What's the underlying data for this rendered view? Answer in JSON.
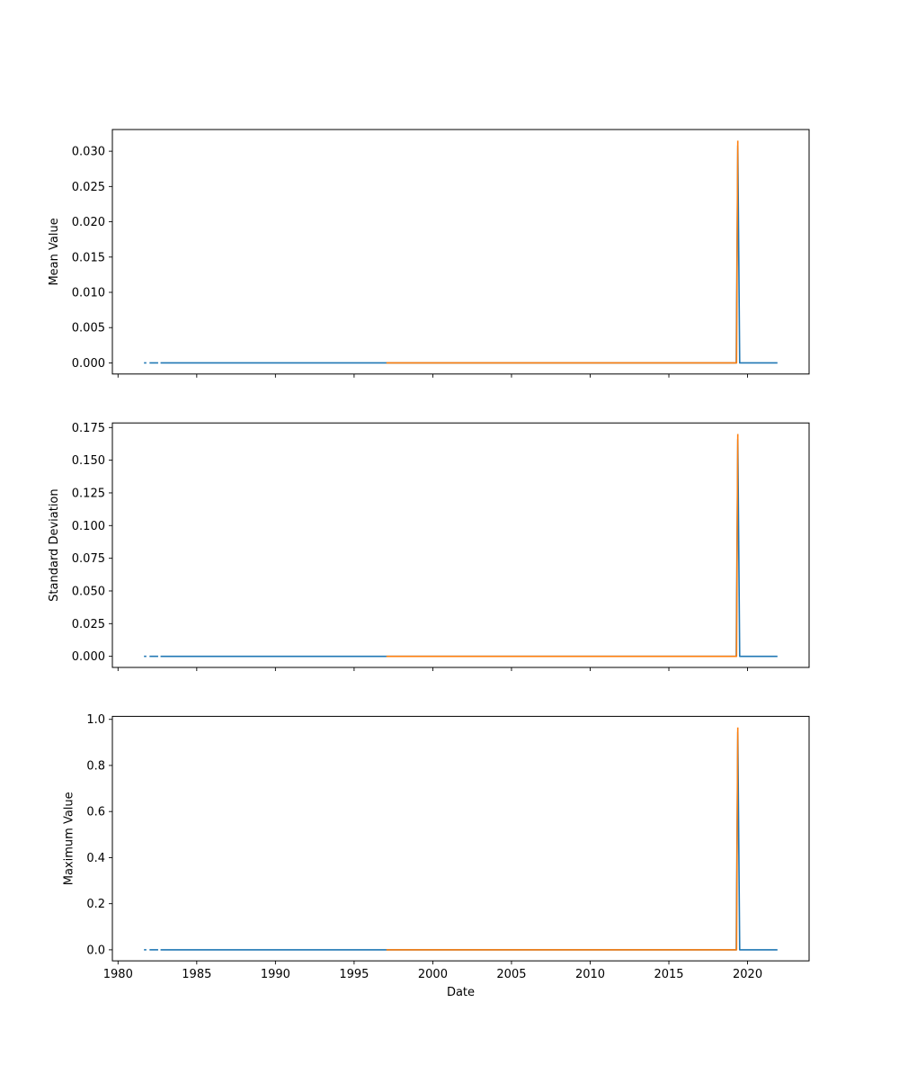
{
  "figure": {
    "background": "#ffffff",
    "text_color": "#000000",
    "spine_color": "#000000"
  },
  "chart_data": [
    {
      "type": "line",
      "name": "mean-value",
      "title": "",
      "xlabel": "",
      "ylabel": "Mean Value",
      "xlim": [
        1979.64,
        2023.91
      ],
      "ylim": [
        -0.001575,
        0.033075
      ],
      "grid": false,
      "legend": null,
      "xticks": {
        "values": [
          1980,
          1985,
          1990,
          1995,
          2000,
          2005,
          2010,
          2015,
          2020
        ],
        "labels": [
          "1980",
          "1985",
          "1990",
          "1995",
          "2000",
          "2005",
          "2010",
          "2015",
          "2020"
        ],
        "show_labels": false
      },
      "yticks": {
        "values": [
          0.0,
          0.005,
          0.01,
          0.015,
          0.02,
          0.025,
          0.03
        ],
        "labels": [
          "0.000",
          "0.005",
          "0.010",
          "0.015",
          "0.020",
          "0.025",
          "0.030"
        ]
      },
      "series": [
        {
          "name": "series-1",
          "color": "#1f77b4",
          "segments": [
            [
              [
                1981.65,
                0.0
              ],
              [
                1981.8,
                0.0
              ]
            ],
            [
              [
                1982.0,
                0.0
              ],
              [
                1982.55,
                0.0
              ]
            ],
            [
              [
                1982.7,
                0.0
              ],
              [
                2019.28,
                0.0
              ],
              [
                2019.38,
                0.0308
              ],
              [
                2019.5,
                0.0
              ],
              [
                2021.9,
                0.0
              ]
            ]
          ]
        },
        {
          "name": "series-2",
          "color": "#ff7f0e",
          "segments": [
            [
              [
                1997.05,
                0.0
              ],
              [
                2019.3,
                0.0
              ],
              [
                2019.38,
                0.0315
              ]
            ]
          ]
        }
      ]
    },
    {
      "type": "line",
      "name": "standard-deviation",
      "title": "",
      "xlabel": "",
      "ylabel": "Standard Deviation",
      "xlim": [
        1979.64,
        2023.91
      ],
      "ylim": [
        -0.0085,
        0.1785
      ],
      "grid": false,
      "legend": null,
      "xticks": {
        "values": [
          1980,
          1985,
          1990,
          1995,
          2000,
          2005,
          2010,
          2015,
          2020
        ],
        "labels": [
          "1980",
          "1985",
          "1990",
          "1995",
          "2000",
          "2005",
          "2010",
          "2015",
          "2020"
        ],
        "show_labels": false
      },
      "yticks": {
        "values": [
          0.0,
          0.025,
          0.05,
          0.075,
          0.1,
          0.125,
          0.15,
          0.175
        ],
        "labels": [
          "0.000",
          "0.025",
          "0.050",
          "0.075",
          "0.100",
          "0.125",
          "0.150",
          "0.175"
        ]
      },
      "series": [
        {
          "name": "series-1",
          "color": "#1f77b4",
          "segments": [
            [
              [
                1981.65,
                0.0
              ],
              [
                1981.8,
                0.0
              ]
            ],
            [
              [
                1982.0,
                0.0
              ],
              [
                1982.55,
                0.0
              ]
            ],
            [
              [
                1982.7,
                0.0
              ],
              [
                2019.28,
                0.0
              ],
              [
                2019.38,
                0.166
              ],
              [
                2019.5,
                0.0
              ],
              [
                2021.9,
                0.0
              ]
            ]
          ]
        },
        {
          "name": "series-2",
          "color": "#ff7f0e",
          "segments": [
            [
              [
                1997.05,
                0.0
              ],
              [
                2019.3,
                0.0
              ],
              [
                2019.38,
                0.17
              ]
            ]
          ]
        }
      ]
    },
    {
      "type": "line",
      "name": "maximum-value",
      "title": "",
      "xlabel": "Date",
      "ylabel": "Maximum Value",
      "xlim": [
        1979.64,
        2023.91
      ],
      "ylim": [
        -0.048,
        1.013
      ],
      "grid": false,
      "legend": null,
      "xticks": {
        "values": [
          1980,
          1985,
          1990,
          1995,
          2000,
          2005,
          2010,
          2015,
          2020
        ],
        "labels": [
          "1980",
          "1985",
          "1990",
          "1995",
          "2000",
          "2005",
          "2010",
          "2015",
          "2020"
        ],
        "show_labels": true
      },
      "yticks": {
        "values": [
          0.0,
          0.2,
          0.4,
          0.6,
          0.8,
          1.0
        ],
        "labels": [
          "0.0",
          "0.2",
          "0.4",
          "0.6",
          "0.8",
          "1.0"
        ]
      },
      "series": [
        {
          "name": "series-1",
          "color": "#1f77b4",
          "segments": [
            [
              [
                1981.65,
                0.0
              ],
              [
                1981.8,
                0.0
              ]
            ],
            [
              [
                1982.0,
                0.0
              ],
              [
                1982.55,
                0.0
              ]
            ],
            [
              [
                1982.7,
                0.0
              ],
              [
                2019.28,
                0.0
              ],
              [
                2019.38,
                0.945
              ],
              [
                2019.5,
                0.0
              ],
              [
                2021.9,
                0.0
              ]
            ]
          ]
        },
        {
          "name": "series-2",
          "color": "#ff7f0e",
          "segments": [
            [
              [
                1997.05,
                0.0
              ],
              [
                2019.3,
                0.0
              ],
              [
                2019.38,
                0.965
              ]
            ]
          ]
        }
      ]
    }
  ]
}
